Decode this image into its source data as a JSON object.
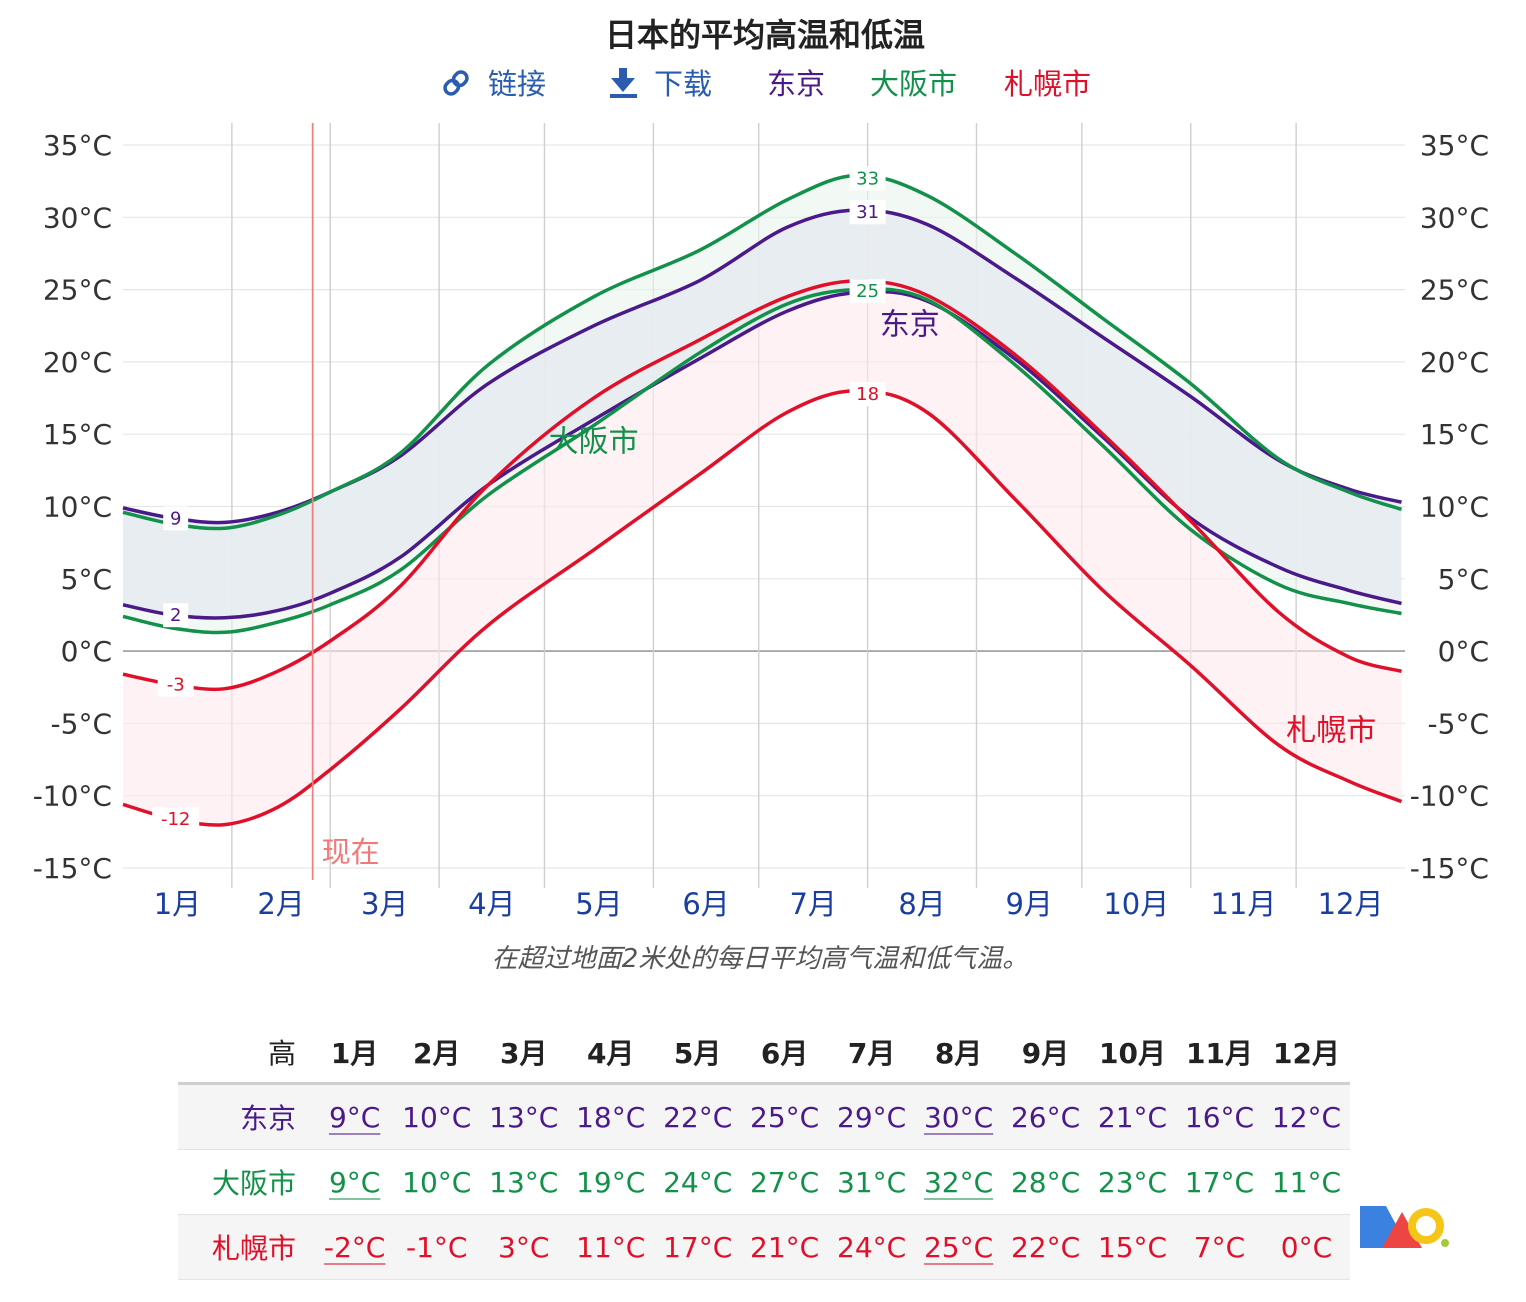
{
  "title": "日本的平均高温和低温",
  "toolbar": {
    "link_label": "链接",
    "download_label": "下载"
  },
  "legend": [
    {
      "name": "东京",
      "color": "#4b1a8a"
    },
    {
      "name": "大阪市",
      "color": "#13914a"
    },
    {
      "name": "札幌市",
      "color": "#e0102a"
    }
  ],
  "now_label": "现在",
  "caption": "在超过地面2米处的每日平均高气温和低气温。",
  "chart_data": {
    "type": "line",
    "title": "日本的平均高温和低温",
    "y_unit": "°C",
    "ylim": [
      -15,
      35
    ],
    "yticks": [
      -15,
      -10,
      -5,
      0,
      5,
      10,
      15,
      20,
      25,
      30,
      35
    ],
    "ytick_labels": [
      "-15°C",
      "-10°C",
      "-5°C",
      "0°C",
      "5°C",
      "10°C",
      "15°C",
      "20°C",
      "25°C",
      "30°C",
      "35°C"
    ],
    "months": [
      "1月",
      "2月",
      "3月",
      "4月",
      "5月",
      "6月",
      "7月",
      "8月",
      "9月",
      "10月",
      "11月",
      "12月"
    ],
    "x_unit": "day_of_year",
    "now_day": 55,
    "grid": true,
    "series": [
      {
        "name": "东京",
        "color": "#4b1a8a",
        "high": [
          [
            1,
            9.9
          ],
          [
            15,
            9.2
          ],
          [
            30,
            8.9
          ],
          [
            45,
            9.6
          ],
          [
            60,
            11
          ],
          [
            80,
            13.5
          ],
          [
            105,
            18.5
          ],
          [
            135,
            22.5
          ],
          [
            165,
            25.6
          ],
          [
            190,
            29.3
          ],
          [
            210,
            30.5
          ],
          [
            230,
            29.5
          ],
          [
            255,
            25.8
          ],
          [
            280,
            21.7
          ],
          [
            305,
            17.6
          ],
          [
            330,
            13.2
          ],
          [
            350,
            11.2
          ],
          [
            365,
            10.3
          ]
        ],
        "low": [
          [
            1,
            3.2
          ],
          [
            15,
            2.5
          ],
          [
            30,
            2.3
          ],
          [
            45,
            2.8
          ],
          [
            60,
            4.0
          ],
          [
            80,
            6.5
          ],
          [
            105,
            11.5
          ],
          [
            135,
            16.0
          ],
          [
            165,
            20.2
          ],
          [
            190,
            23.5
          ],
          [
            210,
            24.8
          ],
          [
            230,
            24.2
          ],
          [
            255,
            20.2
          ],
          [
            280,
            14.8
          ],
          [
            305,
            9.2
          ],
          [
            330,
            5.8
          ],
          [
            350,
            4.2
          ],
          [
            365,
            3.3
          ]
        ]
      },
      {
        "name": "大阪市",
        "color": "#13914a",
        "high": [
          [
            1,
            9.6
          ],
          [
            15,
            8.8
          ],
          [
            30,
            8.5
          ],
          [
            45,
            9.4
          ],
          [
            60,
            11
          ],
          [
            80,
            13.7
          ],
          [
            105,
            19.8
          ],
          [
            135,
            24.5
          ],
          [
            165,
            27.7
          ],
          [
            190,
            31.2
          ],
          [
            210,
            32.9
          ],
          [
            230,
            31.5
          ],
          [
            255,
            27.5
          ],
          [
            280,
            23.0
          ],
          [
            305,
            18.5
          ],
          [
            330,
            13.3
          ],
          [
            350,
            11.0
          ],
          [
            365,
            9.8
          ]
        ],
        "low": [
          [
            1,
            2.4
          ],
          [
            15,
            1.6
          ],
          [
            30,
            1.3
          ],
          [
            45,
            2.0
          ],
          [
            60,
            3.2
          ],
          [
            80,
            5.6
          ],
          [
            105,
            10.8
          ],
          [
            135,
            15.6
          ],
          [
            165,
            20.6
          ],
          [
            190,
            24.0
          ],
          [
            210,
            25.0
          ],
          [
            230,
            24.3
          ],
          [
            255,
            19.8
          ],
          [
            280,
            14.2
          ],
          [
            305,
            8.4
          ],
          [
            330,
            4.6
          ],
          [
            350,
            3.3
          ],
          [
            365,
            2.6
          ]
        ]
      },
      {
        "name": "札幌市",
        "color": "#e0102a",
        "high": [
          [
            1,
            -1.6
          ],
          [
            15,
            -2.3
          ],
          [
            30,
            -2.6
          ],
          [
            45,
            -1.4
          ],
          [
            60,
            0.7
          ],
          [
            80,
            4.5
          ],
          [
            105,
            11.5
          ],
          [
            135,
            17.5
          ],
          [
            165,
            21.5
          ],
          [
            190,
            24.5
          ],
          [
            210,
            25.6
          ],
          [
            230,
            24.6
          ],
          [
            255,
            20.5
          ],
          [
            280,
            15.0
          ],
          [
            305,
            9.0
          ],
          [
            330,
            2.7
          ],
          [
            350,
            -0.4
          ],
          [
            365,
            -1.4
          ]
        ],
        "low": [
          [
            1,
            -10.6
          ],
          [
            15,
            -11.6
          ],
          [
            30,
            -12.0
          ],
          [
            45,
            -10.8
          ],
          [
            60,
            -8.2
          ],
          [
            80,
            -4.0
          ],
          [
            105,
            1.8
          ],
          [
            135,
            7.0
          ],
          [
            165,
            12.2
          ],
          [
            190,
            16.5
          ],
          [
            210,
            18.0
          ],
          [
            230,
            16.5
          ],
          [
            255,
            10.5
          ],
          [
            280,
            4.2
          ],
          [
            305,
            -1.0
          ],
          [
            330,
            -6.5
          ],
          [
            350,
            -9.0
          ],
          [
            365,
            -10.4
          ]
        ]
      }
    ],
    "peak_labels": [
      {
        "series": "东京",
        "curve": "high",
        "day": 16,
        "value": 9
      },
      {
        "series": "东京",
        "curve": "low",
        "day": 16,
        "value": 2
      },
      {
        "series": "札幌市",
        "curve": "high",
        "day": 16,
        "value": -3
      },
      {
        "series": "札幌市",
        "curve": "low",
        "day": 16,
        "value": -12
      },
      {
        "series": "大阪市",
        "curve": "high",
        "day": 213,
        "value": 33
      },
      {
        "series": "东京",
        "curve": "high",
        "day": 213,
        "value": 31
      },
      {
        "series": "大阪市",
        "curve": "low",
        "day": 213,
        "value": 25
      },
      {
        "series": "札幌市",
        "curve": "low",
        "day": 213,
        "value": 18
      }
    ],
    "series_labels": [
      {
        "name": "大阪市",
        "day": 135,
        "value": 14.5
      },
      {
        "name": "东京",
        "day": 225,
        "value": 22.6
      },
      {
        "name": "札幌市",
        "day": 345,
        "value": -5.5
      }
    ]
  },
  "table": {
    "corner_label": "高",
    "headers": [
      "1月",
      "2月",
      "3月",
      "4月",
      "5月",
      "6月",
      "7月",
      "8月",
      "9月",
      "10月",
      "11月",
      "12月"
    ],
    "highlight_cols": [
      0,
      7
    ],
    "rows": [
      {
        "name": "东京",
        "color": "#4b1a8a",
        "values": [
          "9°C",
          "10°C",
          "13°C",
          "18°C",
          "22°C",
          "25°C",
          "29°C",
          "30°C",
          "26°C",
          "21°C",
          "16°C",
          "12°C"
        ]
      },
      {
        "name": "大阪市",
        "color": "#13914a",
        "values": [
          "9°C",
          "10°C",
          "13°C",
          "19°C",
          "24°C",
          "27°C",
          "31°C",
          "32°C",
          "28°C",
          "23°C",
          "17°C",
          "11°C"
        ]
      },
      {
        "name": "札幌市",
        "color": "#e0102a",
        "values": [
          "-2°C",
          "-1°C",
          "3°C",
          "11°C",
          "17°C",
          "21°C",
          "24°C",
          "25°C",
          "22°C",
          "15°C",
          "7°C",
          "0°C"
        ]
      }
    ]
  }
}
